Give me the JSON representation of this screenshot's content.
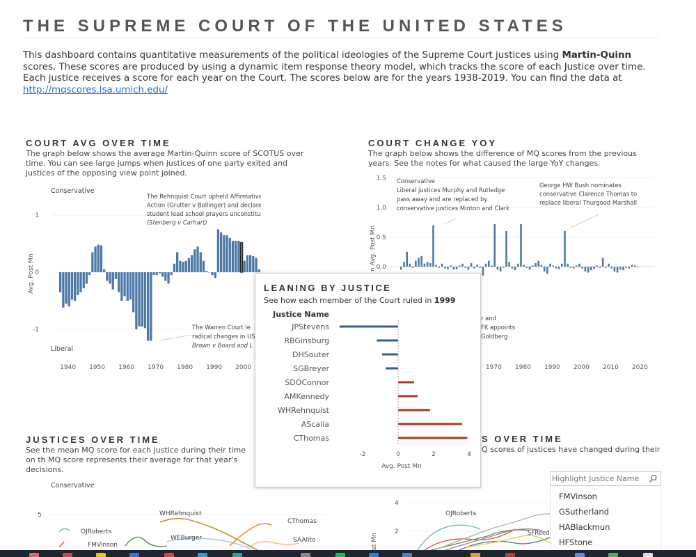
{
  "header": {
    "title": "THE SUPREME COURT OF THE UNITED STATES",
    "intro_part1": "This dashboard contains quantitative measurements of the political ideologies of the Supreme Court justices using ",
    "intro_bold": "Martin-Quinn",
    "intro_part2": " scores. These scores are produced by using a dynamic item response theory model, which tracks the score of each Justice over time. Each justice receives a score for each year on the Court. The scores below are for the years 1938-2019. You can find the data at",
    "link": "http://mqscores.lsa.umich.edu/"
  },
  "court_avg": {
    "title": "COURT AVG OVER TIME",
    "desc": "The graph below shows the average Martin-Quinn score of SCOTUS over time. You can see large jumps when justices of one party exited and justices of the opposing view point joined.",
    "ylabel": "Avg. Post Mn",
    "label_conservative": "Conservative",
    "label_liberal": "Liberal",
    "ann_rehnquist": [
      "The Rehnquist Court upheld Affirmative",
      "Action (Grutter v Bollinger) and declared",
      "student lead school prayers unconstitutional",
      "(Stenberg v Carhart)"
    ],
    "ann_warren": [
      "The Warren Court le",
      "radical changes in US",
      "Brown v Board and L"
    ],
    "yticks": [
      "1",
      "0",
      "-1"
    ],
    "xticks": [
      "1940",
      "1950",
      "1960",
      "1970",
      "1980",
      "1990",
      "2000"
    ]
  },
  "court_change": {
    "title": "COURT CHANGE YOY",
    "desc": "The graph below shows the difference of MQ scores from the previous years. See the notes for what caused the large YoY changes.",
    "ylabel": "n Avg. Post Mn",
    "yticks": [
      "1.5",
      "1.0",
      "0.5",
      "0.0"
    ],
    "xticks": [
      "1970",
      "1980",
      "1990",
      "2000",
      "2010",
      "2020"
    ],
    "ann_conservative": [
      "Conservative",
      "Liberal justices Murphy and Rutledge",
      "pass away and are replaced by",
      "conservative justices Minton and Clark"
    ],
    "ann_bush": [
      "George HW Bush nominates",
      "conservative Clarence Thomas to",
      "replace liberal Thurgood Marshall"
    ],
    "ann_partial": [
      "r and",
      "FK appoints",
      "Goldberg"
    ]
  },
  "justices_over_time": {
    "title": "JUSTICES OVER TIME",
    "desc": "See the mean MQ score for each justice during their time on th MQ score represents their average for that year's decisions.",
    "label_conservative": "Conservative",
    "ytick": "5",
    "names": [
      "WHRehnquist",
      "CThomas",
      "OJRoberts",
      "WEBurger",
      "SAAlito",
      "FMVinson"
    ]
  },
  "justices_right": {
    "title_partial": "S OVER TIME",
    "desc_partial": "Q scores of justices have changed during their",
    "ylabel": "st Mn",
    "yticks": [
      "4",
      "2"
    ],
    "names": [
      "OJRoberts",
      "SFReed"
    ]
  },
  "leaning": {
    "title": "LEANING BY JUSTICE",
    "subtitle_prefix": "See how each member of the Court ruled in ",
    "subtitle_year": "1999",
    "col_header": "Justice Name",
    "xlabel": "Avg. Post Mn",
    "xticks": [
      "-2",
      "0",
      "2",
      "4"
    ]
  },
  "search": {
    "placeholder": "Highlight Justice Name",
    "items": [
      "FMVinson",
      "GSutherland",
      "HABlackmun",
      "HFStone"
    ]
  },
  "colors": {
    "bar_blue": "#4e79a7",
    "liberal": "#2e5f8a",
    "conservative": "#a83b23"
  },
  "chart_data": [
    {
      "type": "bar",
      "title": "COURT AVG OVER TIME",
      "ylabel": "Avg. Post Mn",
      "ylim": [
        -1.5,
        1.5
      ],
      "x": [
        1937,
        1938,
        1939,
        1940,
        1941,
        1942,
        1943,
        1944,
        1945,
        1946,
        1947,
        1948,
        1949,
        1950,
        1951,
        1952,
        1953,
        1954,
        1955,
        1956,
        1957,
        1958,
        1959,
        1960,
        1961,
        1962,
        1963,
        1964,
        1965,
        1966,
        1967,
        1968,
        1969,
        1970,
        1971,
        1972,
        1973,
        1974,
        1975,
        1976,
        1977,
        1978,
        1979,
        1980,
        1981,
        1982,
        1983,
        1984,
        1985,
        1986,
        1987,
        1988,
        1989,
        1990,
        1991,
        1992,
        1993,
        1994,
        1995,
        1996,
        1997,
        1998,
        1999,
        2000,
        2001,
        2002,
        2003,
        2004,
        2005
      ],
      "values": [
        -0.35,
        -0.62,
        -0.55,
        -0.6,
        -0.48,
        -0.5,
        -0.4,
        -0.35,
        -0.28,
        -0.2,
        -0.05,
        0.35,
        0.45,
        0.48,
        0.47,
        0.05,
        -0.15,
        -0.2,
        -0.3,
        -0.12,
        -0.35,
        -0.5,
        -0.42,
        -0.5,
        -0.48,
        -0.7,
        -1.0,
        -0.95,
        -0.95,
        -0.98,
        -1.2,
        -1.2,
        -0.05,
        -0.05,
        -0.02,
        -0.08,
        -0.15,
        -0.2,
        -0.05,
        0.15,
        0.35,
        0.2,
        0.18,
        0.2,
        0.25,
        0.3,
        0.4,
        0.45,
        0.35,
        0.2,
        0.02,
        0.0,
        -0.05,
        -0.1,
        0.75,
        0.7,
        0.65,
        0.65,
        0.6,
        0.55,
        0.55,
        0.55,
        0.52,
        0.2,
        0.3,
        0.3,
        0.28,
        0.25,
        0.05
      ]
    },
    {
      "type": "bar",
      "title": "COURT CHANGE YOY",
      "ylabel": "Avg. Post Mn",
      "ylim": [
        -0.2,
        1.5
      ],
      "x": [
        1938,
        1939,
        1940,
        1941,
        1942,
        1943,
        1944,
        1945,
        1946,
        1947,
        1948,
        1949,
        1950,
        1951,
        1952,
        1953,
        1954,
        1955,
        1956,
        1957,
        1958,
        1959,
        1960,
        1961,
        1962,
        1963,
        1964,
        1965,
        1966,
        1967,
        1968,
        1969,
        1970,
        1971,
        1972,
        1973,
        1974,
        1975,
        1976,
        1977,
        1978,
        1979,
        1980,
        1981,
        1982,
        1983,
        1984,
        1985,
        1986,
        1987,
        1988,
        1989,
        1990,
        1991,
        1992,
        1993,
        1994,
        1995,
        1996,
        1997,
        1998,
        1999,
        2000,
        2001,
        2002,
        2003,
        2004,
        2005,
        2006,
        2007,
        2008,
        2009,
        2010,
        2011,
        2012,
        2013,
        2014,
        2015,
        2016,
        2017,
        2018,
        2019
      ],
      "values": [
        -0.05,
        0.08,
        0.25,
        0.05,
        -0.02,
        0.1,
        0.15,
        0.18,
        0.05,
        0.08,
        0.06,
        0.7,
        0.03,
        -0.02,
        0.05,
        -0.03,
        -0.04,
        0.02,
        -0.05,
        -0.04,
        0.02,
        0.05,
        -0.02,
        -0.05,
        0.06,
        -0.03,
        0.03,
        -0.02,
        -0.15,
        0.05,
        0.1,
        0.02,
        0.72,
        -0.05,
        -0.08,
        -0.02,
        0.6,
        0.08,
        -0.03,
        -0.06,
        0.05,
        0.72,
        0.03,
        -0.02,
        -0.05,
        0.02,
        0.06,
        0.1,
        0.03,
        -0.08,
        -0.12,
        0.05,
        0.02,
        -0.03,
        -0.04,
        0.05,
        0.6,
        0.05,
        -0.02,
        -0.03,
        0.02,
        0.05,
        -0.03,
        -0.08,
        -0.1,
        -0.06,
        -0.04,
        0.02,
        -0.02,
        0.15,
        -0.02,
        0.05,
        -0.03,
        -0.08,
        -0.1,
        -0.05,
        -0.06,
        -0.02,
        -0.03,
        0.03,
        0.02,
        -0.01
      ]
    },
    {
      "type": "bar",
      "title": "LEANING BY JUSTICE",
      "xlabel": "Avg. Post Mn",
      "categories": [
        "JPStevens",
        "RBGinsburg",
        "DHSouter",
        "SGBreyer",
        "SDOConnor",
        "AMKennedy",
        "WHRehnquist",
        "AScalia",
        "CThomas"
      ],
      "values": [
        -3.3,
        -1.2,
        -0.9,
        -0.7,
        0.9,
        1.1,
        1.8,
        3.6,
        3.9
      ],
      "xlim": [
        -3.4,
        4.2
      ]
    }
  ]
}
